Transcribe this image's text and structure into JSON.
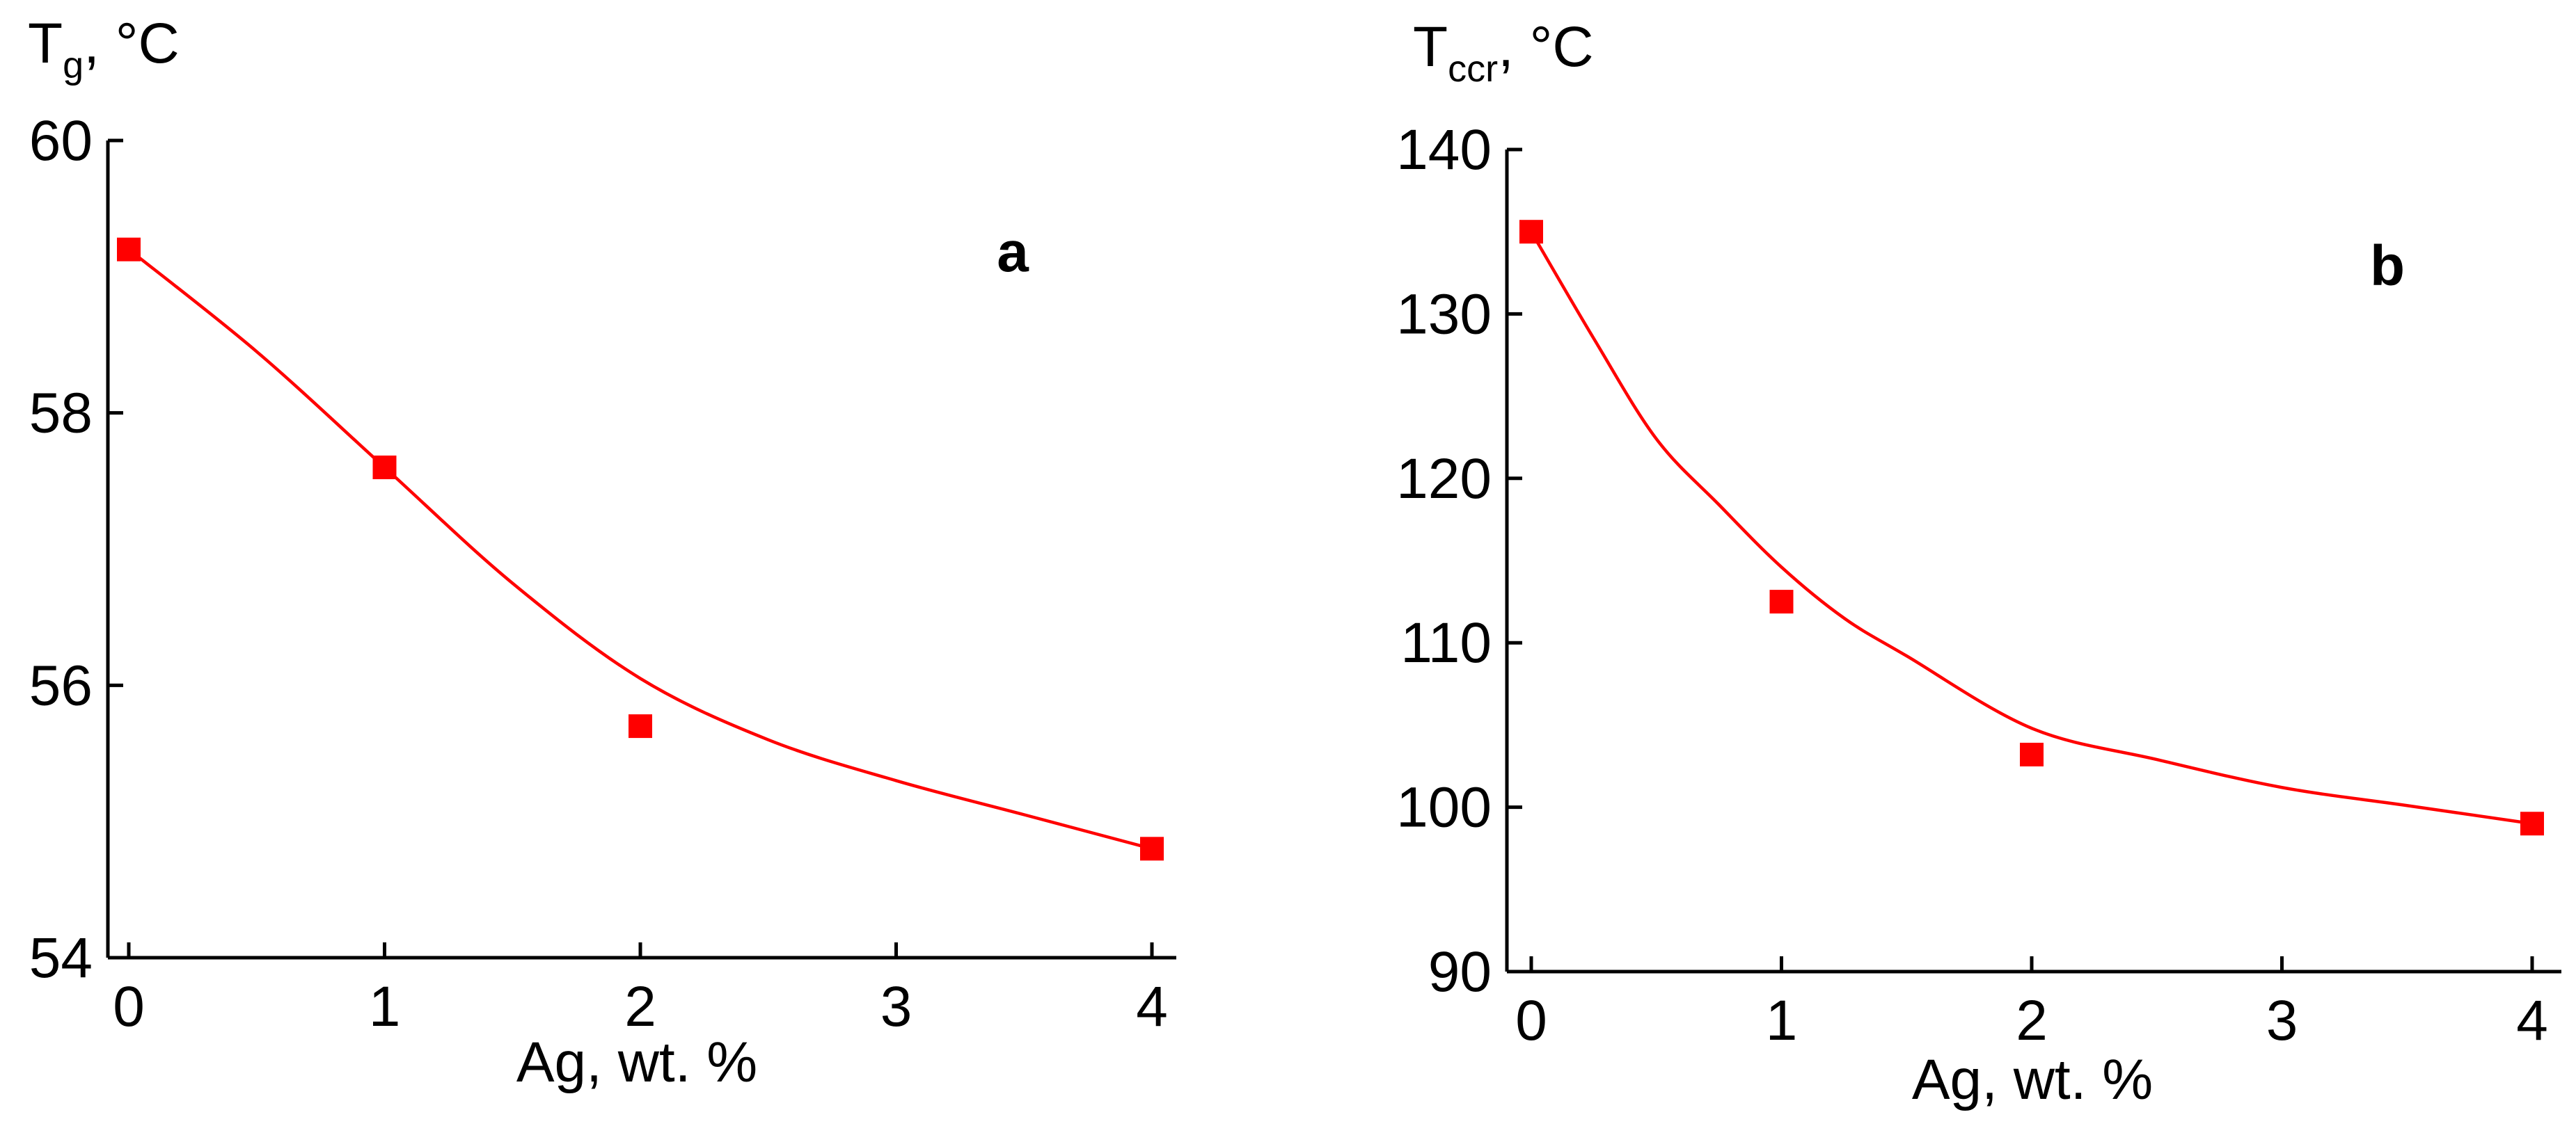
{
  "colors": {
    "marker": "#ff0000",
    "fit_line": "#ff0000",
    "axes": "#000000"
  },
  "panels": [
    {
      "panel_label": "a",
      "ylabel": {
        "main": "T",
        "subscript": "g",
        "unit": ", °C"
      }
    },
    {
      "panel_label": "b",
      "ylabel": {
        "main": "T",
        "subscript": "ccr",
        "unit": ", °C"
      }
    }
  ],
  "chart_data": [
    {
      "type": "scatter",
      "panel_label": "a",
      "xlabel": "Ag, wt. %",
      "x": [
        0,
        1,
        2,
        4
      ],
      "y": [
        59.2,
        57.6,
        55.7,
        54.8
      ],
      "fit_curve": {
        "x": [
          0,
          0.5,
          1,
          1.5,
          2,
          2.5,
          3,
          3.5,
          4
        ],
        "y": [
          59.2,
          58.45,
          57.6,
          56.75,
          56.05,
          55.6,
          55.3,
          55.05,
          54.8
        ]
      },
      "marker": "square",
      "xlim": [
        -0.1,
        4.1
      ],
      "ylim": [
        54,
        60
      ],
      "xticks": [
        0,
        1,
        2,
        3,
        4
      ],
      "yticks": [
        54,
        56,
        58,
        60
      ],
      "grid": false
    },
    {
      "type": "scatter",
      "panel_label": "b",
      "xlabel": "Ag, wt. %",
      "x": [
        0,
        1,
        2,
        4
      ],
      "y": [
        135,
        112.5,
        103.2,
        99
      ],
      "fit_curve": {
        "x": [
          0,
          0.25,
          0.5,
          0.75,
          1,
          1.25,
          1.5,
          2,
          2.5,
          3,
          3.5,
          4
        ],
        "y": [
          135,
          128.5,
          122.4,
          118.4,
          114.6,
          111.5,
          109.2,
          104.8,
          102.9,
          101.2,
          100.1,
          99
        ]
      },
      "marker": "square",
      "xlim": [
        -0.1,
        4.1
      ],
      "ylim": [
        90,
        140
      ],
      "xticks": [
        0,
        1,
        2,
        3,
        4
      ],
      "yticks": [
        90,
        100,
        110,
        120,
        130,
        140
      ],
      "grid": false
    }
  ]
}
